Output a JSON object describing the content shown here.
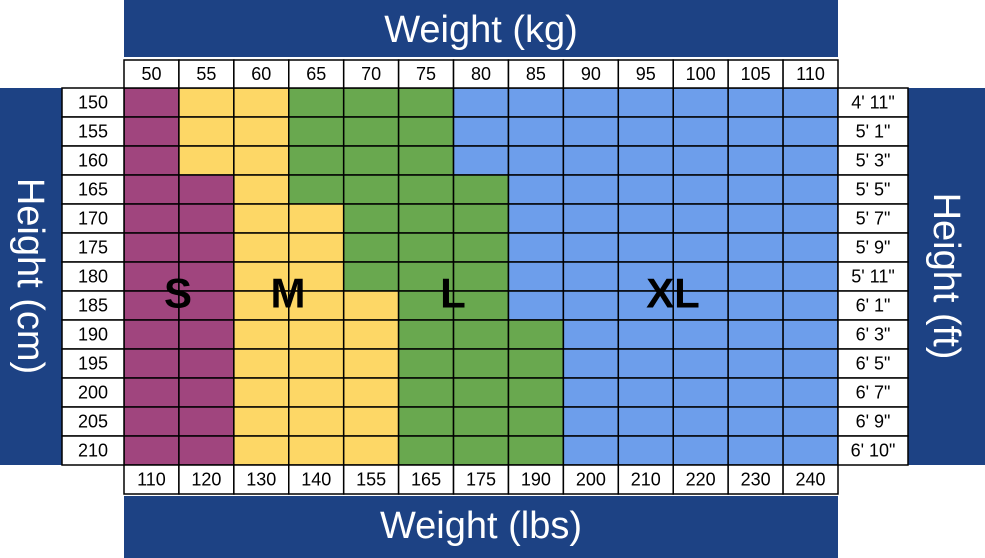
{
  "header": {
    "top": "Weight (kg)",
    "bottom": "Weight (lbs)",
    "left": "Height (cm)",
    "right": "Height (ft)"
  },
  "kg": [
    "50",
    "55",
    "60",
    "65",
    "70",
    "75",
    "80",
    "85",
    "90",
    "95",
    "100",
    "105",
    "110"
  ],
  "lbs": [
    "110",
    "120",
    "130",
    "140",
    "155",
    "165",
    "175",
    "190",
    "200",
    "210",
    "220",
    "230",
    "240"
  ],
  "cm": [
    "150",
    "155",
    "160",
    "165",
    "170",
    "175",
    "180",
    "185",
    "190",
    "195",
    "200",
    "205",
    "210"
  ],
  "ft": [
    "4' 11\"",
    "5' 1\"",
    "5' 3\"",
    "5' 5\"",
    "5' 7\"",
    "5' 9\"",
    "5' 11\"",
    "6' 1\"",
    "6' 3\"",
    "6' 5\"",
    "6' 7\"",
    "6' 9\"",
    "6' 10\""
  ],
  "sizes": [
    {
      "label": "S",
      "color": "#a0457e"
    },
    {
      "label": "M",
      "color": "#fdd766"
    },
    {
      "label": "L",
      "color": "#69a84f"
    },
    {
      "label": "XL",
      "color": "#6d9eeb"
    }
  ],
  "grid": [
    [
      0,
      1,
      1,
      2,
      2,
      2,
      3,
      3,
      3,
      3,
      3,
      3,
      3
    ],
    [
      0,
      1,
      1,
      2,
      2,
      2,
      3,
      3,
      3,
      3,
      3,
      3,
      3
    ],
    [
      0,
      1,
      1,
      2,
      2,
      2,
      3,
      3,
      3,
      3,
      3,
      3,
      3
    ],
    [
      0,
      0,
      1,
      2,
      2,
      2,
      2,
      3,
      3,
      3,
      3,
      3,
      3
    ],
    [
      0,
      0,
      1,
      1,
      2,
      2,
      2,
      3,
      3,
      3,
      3,
      3,
      3
    ],
    [
      0,
      0,
      1,
      1,
      2,
      2,
      2,
      3,
      3,
      3,
      3,
      3,
      3
    ],
    [
      0,
      0,
      1,
      1,
      2,
      2,
      2,
      3,
      3,
      3,
      3,
      3,
      3
    ],
    [
      0,
      0,
      1,
      1,
      1,
      2,
      2,
      3,
      3,
      3,
      3,
      3,
      3
    ],
    [
      0,
      0,
      1,
      1,
      1,
      2,
      2,
      2,
      3,
      3,
      3,
      3,
      3
    ],
    [
      0,
      0,
      1,
      1,
      1,
      2,
      2,
      2,
      3,
      3,
      3,
      3,
      3
    ],
    [
      0,
      0,
      1,
      1,
      1,
      2,
      2,
      2,
      3,
      3,
      3,
      3,
      3
    ],
    [
      0,
      0,
      1,
      1,
      1,
      2,
      2,
      2,
      3,
      3,
      3,
      3,
      3
    ],
    [
      0,
      0,
      1,
      1,
      1,
      2,
      2,
      2,
      3,
      3,
      3,
      3,
      3
    ]
  ]
}
